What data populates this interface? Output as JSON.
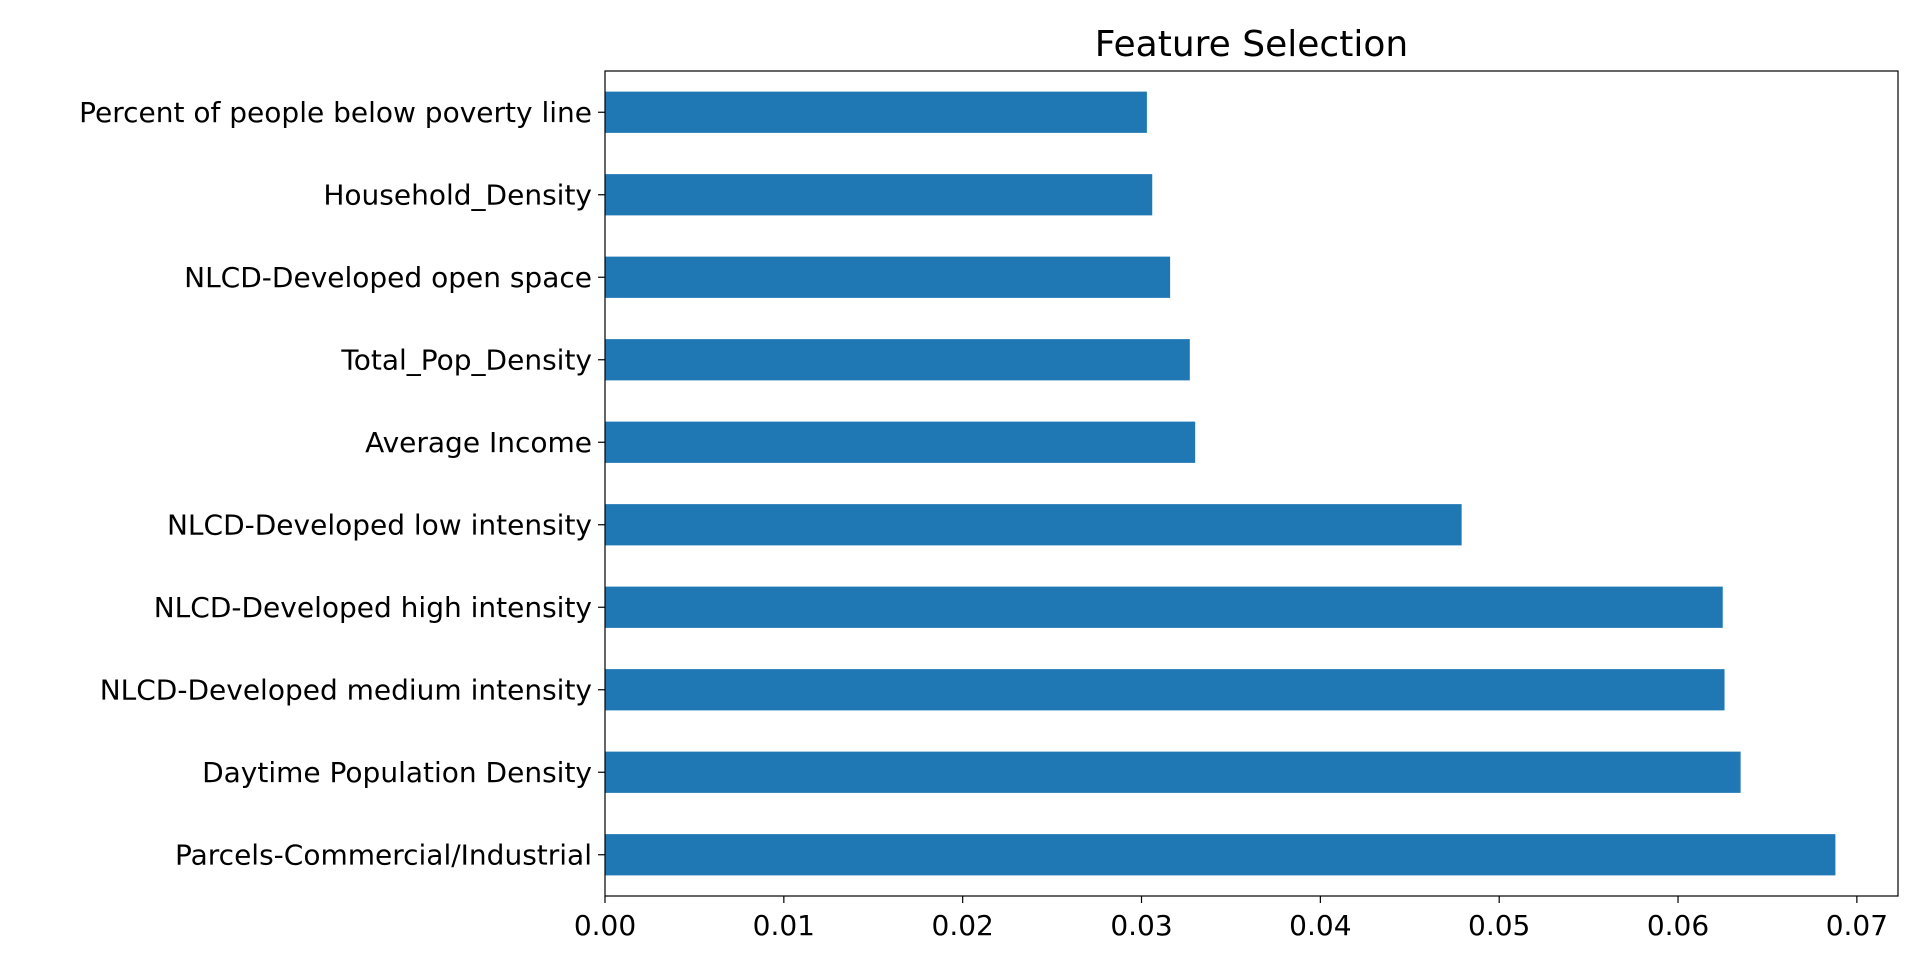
{
  "chart_data": {
    "type": "bar",
    "orientation": "horizontal",
    "title": "Feature Selection",
    "xlabel": "",
    "ylabel": "",
    "categories": [
      "Parcels-Commercial/Industrial",
      "Daytime Population Density",
      "NLCD-Developed medium intensity",
      "NLCD-Developed high intensity",
      "NLCD-Developed low intensity",
      "Average Income",
      "Total_Pop_Density",
      "NLCD-Developed open space",
      "Household_Density",
      "Percent of people below poverty line"
    ],
    "values": [
      0.0688,
      0.0635,
      0.0626,
      0.0625,
      0.0479,
      0.033,
      0.0327,
      0.0316,
      0.0306,
      0.0303
    ],
    "xlim": [
      0,
      0.0723
    ],
    "xticks": [
      0.0,
      0.01,
      0.02,
      0.03,
      0.04,
      0.05,
      0.06,
      0.07
    ],
    "xtick_labels": [
      "0.00",
      "0.01",
      "0.02",
      "0.03",
      "0.04",
      "0.05",
      "0.06",
      "0.07"
    ],
    "grid": false,
    "legend": "none",
    "bar_color": "#1f77b4"
  }
}
